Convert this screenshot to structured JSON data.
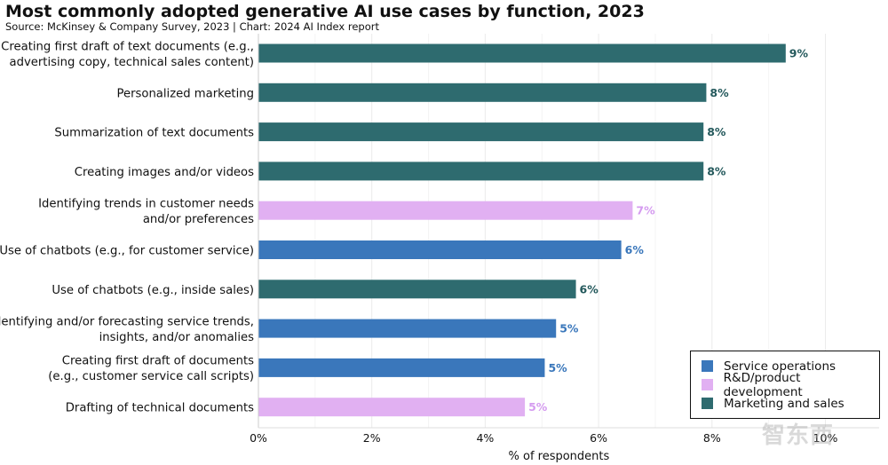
{
  "header": {
    "title": "Most commonly adopted generative AI use cases by function, 2023",
    "subtitle": "Source: McKinsey & Company Survey, 2023 | Chart: 2024 AI Index report"
  },
  "watermark": "智东西",
  "colors": {
    "Service operations": "#3a77bb",
    "R&D/product development": "#e1b0f2",
    "Marketing and sales": "#2e6b6f",
    "label_Service operations": "#3a77bb",
    "label_R&D/product development": "#d59cf0",
    "label_Marketing and sales": "#24595c"
  },
  "chart_data": {
    "type": "bar",
    "orientation": "horizontal",
    "title": "Most commonly adopted generative AI use cases by function, 2023",
    "xlabel": "% of respondents",
    "ylabel": "",
    "xlim": [
      0,
      11
    ],
    "xticks": [
      0,
      2,
      4,
      6,
      8,
      10
    ],
    "xtick_labels": [
      "0%",
      "2%",
      "4%",
      "6%",
      "8%",
      "10%"
    ],
    "grid": true,
    "legend_position": "bottom-right",
    "legend": [
      "Service operations",
      "R&D/product development",
      "Marketing and sales"
    ],
    "bars": [
      {
        "label": [
          "Creating first draft of text documents (e.g.,",
          "advertising copy, technical sales content)"
        ],
        "value": 9.3,
        "value_label": "9%",
        "function": "Marketing and sales"
      },
      {
        "label": [
          "Personalized marketing"
        ],
        "value": 7.9,
        "value_label": "8%",
        "function": "Marketing and sales"
      },
      {
        "label": [
          "Summarization of text documents"
        ],
        "value": 7.85,
        "value_label": "8%",
        "function": "Marketing and sales"
      },
      {
        "label": [
          "Creating images and/or videos"
        ],
        "value": 7.85,
        "value_label": "8%",
        "function": "Marketing and sales"
      },
      {
        "label": [
          "Identifying trends in customer needs",
          "and/or preferences"
        ],
        "value": 6.6,
        "value_label": "7%",
        "function": "R&D/product development"
      },
      {
        "label": [
          "Use of chatbots (e.g., for customer service)"
        ],
        "value": 6.4,
        "value_label": "6%",
        "function": "Service operations"
      },
      {
        "label": [
          "Use of chatbots (e.g., inside sales)"
        ],
        "value": 5.6,
        "value_label": "6%",
        "function": "Marketing and sales"
      },
      {
        "label": [
          "Identifying and/or forecasting service trends,",
          "insights, and/or anomalies"
        ],
        "value": 5.25,
        "value_label": "5%",
        "function": "Service operations"
      },
      {
        "label": [
          "Creating first draft of documents",
          "(e.g., customer service call scripts)"
        ],
        "value": 5.05,
        "value_label": "5%",
        "function": "Service operations"
      },
      {
        "label": [
          "Drafting of technical documents"
        ],
        "value": 4.7,
        "value_label": "5%",
        "function": "R&D/product development"
      }
    ]
  }
}
